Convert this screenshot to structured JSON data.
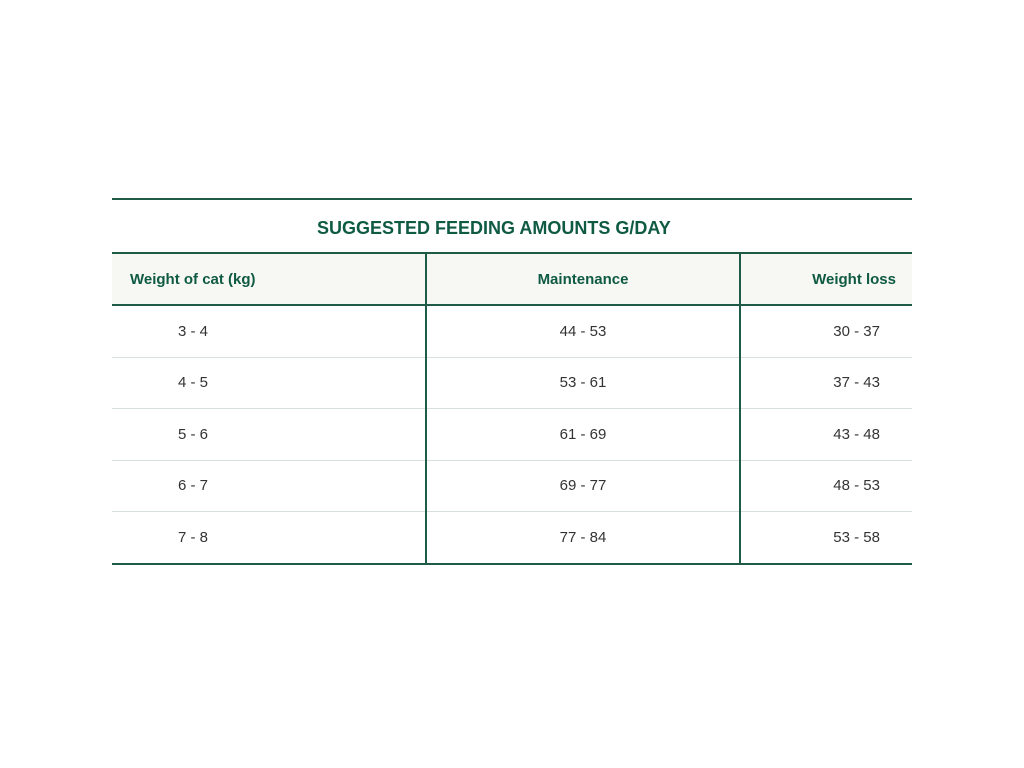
{
  "title": "SUGGESTED FEEDING AMOUNTS G/DAY",
  "headers": [
    "Weight of cat (kg)",
    "Maintenance",
    "Weight loss"
  ],
  "rows": [
    [
      "3 - 4",
      "44 - 53",
      "30 - 37"
    ],
    [
      "4 - 5",
      "53 - 61",
      "37 - 43"
    ],
    [
      "5 - 6",
      "61 - 69",
      "43 - 48"
    ],
    [
      "6 - 7",
      "69 - 77",
      "48 - 53"
    ],
    [
      "7 - 8",
      "77 - 84",
      "53 - 58"
    ]
  ],
  "colors": {
    "accent": "#0f5a43",
    "border": "#1f5c48",
    "header_bg": "#f7f8f3"
  }
}
